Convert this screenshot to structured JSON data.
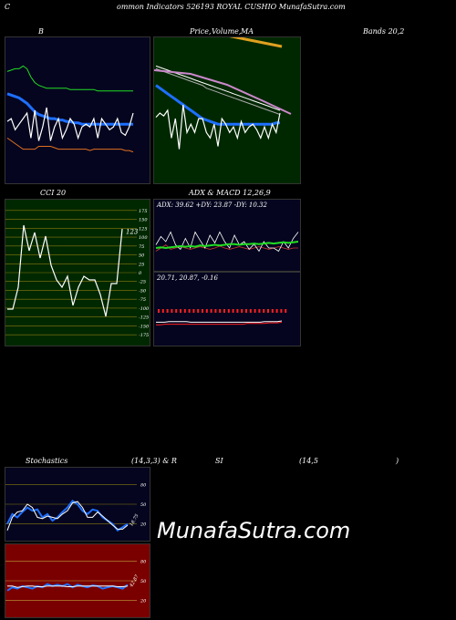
{
  "header": {
    "prefix": "C",
    "text": "ommon  Indicators 526193 ROYAL  CUSHIO MunafaSutra.com"
  },
  "labels": {
    "bollinger_b": "B",
    "price_label": "Price,",
    "volume_label": "Volume,",
    "ma_label": "MA",
    "bands_label": "Bands 20,2",
    "cci_label": "CCI 20",
    "adx_macd_label": "ADX  & MACD 12,26,9",
    "stochastics_label": "Stochastics",
    "stoch_params": "(14,3,3) & R",
    "rsi_si": "SI",
    "rsi_params": "(14,5",
    "rsi_close": ")"
  },
  "colors": {
    "bg": "#000000",
    "panel_dark": "#05051f",
    "panel_green": "#002800",
    "panel_red": "#7a0000",
    "blue": "#1e6fff",
    "white": "#ffffff",
    "green": "#22dd22",
    "orange": "#e07020",
    "grid_olive": "#8a7a10",
    "red_bar": "#ff2020"
  },
  "watermark": "MunafaSutra.com",
  "chart_data": [
    {
      "id": "bollinger",
      "type": "line",
      "title": "B",
      "ylim": [
        0,
        100
      ],
      "series": [
        {
          "color": "#22dd22",
          "values": [
            78,
            79,
            80,
            80,
            82,
            80,
            74,
            70,
            68,
            67,
            66,
            66,
            66,
            66,
            66,
            66,
            65,
            65,
            65,
            65,
            65,
            65,
            65,
            64,
            64,
            64,
            64,
            64,
            64,
            64,
            64,
            64,
            64
          ]
        },
        {
          "color": "#1e6fff",
          "values": [
            62,
            61,
            60,
            59,
            57,
            55,
            52,
            49,
            47,
            46,
            45,
            44,
            44,
            43,
            43,
            42,
            42,
            41,
            41,
            40,
            40,
            40,
            40,
            40,
            40,
            40,
            40,
            40,
            40,
            40,
            40,
            40,
            40
          ]
        },
        {
          "color": "#ffffff",
          "values": [
            42,
            44,
            36,
            40,
            44,
            48,
            30,
            50,
            28,
            38,
            52,
            28,
            38,
            44,
            30,
            36,
            44,
            40,
            30,
            38,
            40,
            38,
            44,
            30,
            44,
            40,
            36,
            38,
            44,
            34,
            32,
            38,
            48
          ]
        },
        {
          "color": "#e07020",
          "values": [
            30,
            28,
            26,
            24,
            22,
            22,
            22,
            22,
            24,
            24,
            24,
            24,
            23,
            22,
            22,
            22,
            22,
            22,
            22,
            22,
            22,
            21,
            22,
            22,
            22,
            22,
            22,
            22,
            22,
            22,
            21,
            21,
            20
          ]
        }
      ]
    },
    {
      "id": "price_ma",
      "type": "line",
      "title": "Price, Volume, MA",
      "ylim": [
        0,
        100
      ],
      "series": [
        {
          "color": "#ffffff",
          "values": [
            82,
            81,
            80,
            79,
            78,
            77,
            76,
            75,
            74,
            73,
            72,
            71,
            70,
            69,
            68,
            67,
            66,
            65,
            64,
            63,
            62,
            61,
            60,
            59,
            58,
            57,
            56,
            55,
            54,
            53,
            52,
            51,
            50
          ]
        },
        {
          "color": "#aaaaaa",
          "values": [
            80,
            79,
            78,
            77,
            76,
            75,
            74,
            73,
            72,
            71,
            70,
            69,
            68,
            66,
            65,
            64,
            63,
            62,
            61,
            60,
            59,
            58,
            57,
            56,
            55,
            54,
            53,
            52,
            51,
            50,
            49,
            48,
            47
          ]
        },
        {
          "color": "#1e6fff",
          "values": [
            68,
            66,
            64,
            62,
            60,
            58,
            56,
            54,
            52,
            50,
            48,
            46,
            44,
            43,
            42,
            41,
            40,
            40,
            40,
            40,
            40,
            40,
            40,
            40,
            40,
            40,
            40,
            40,
            40,
            40,
            40,
            41,
            41
          ]
        },
        {
          "color": "#ffffff",
          "values": [
            45,
            48,
            46,
            50,
            30,
            44,
            22,
            54,
            34,
            40,
            34,
            44,
            44,
            34,
            30,
            40,
            24,
            44,
            40,
            34,
            38,
            30,
            42,
            34,
            38,
            40,
            36,
            30,
            38,
            30,
            40,
            34,
            48
          ]
        }
      ]
    },
    {
      "id": "cci",
      "type": "line",
      "title": "CCI 20",
      "yticks": [
        175,
        150,
        125,
        100,
        75,
        50,
        25,
        0,
        -25,
        -50,
        -75,
        -100,
        -125,
        -150,
        -175
      ],
      "ylim": [
        -190,
        190
      ],
      "last_value_label": "123",
      "values": [
        -100,
        -100,
        -40,
        130,
        60,
        110,
        40,
        100,
        20,
        -20,
        -40,
        -10,
        -90,
        -40,
        -10,
        -20,
        -20,
        -60,
        -120,
        -30,
        -30,
        120
      ]
    },
    {
      "id": "adx",
      "type": "line",
      "title": "ADX: 39.62  +DY: 23.87 -DY: 10.32",
      "ylim": [
        0,
        100
      ],
      "series": [
        {
          "color": "#22dd22",
          "values": [
            30,
            31,
            30,
            31,
            32,
            33,
            32,
            33,
            32,
            34,
            33,
            34,
            35,
            34,
            35,
            36,
            36,
            35,
            36,
            36,
            37,
            36,
            37,
            38,
            37,
            38,
            39,
            38,
            39,
            40
          ]
        },
        {
          "color": "#ffffff",
          "values": [
            35,
            48,
            40,
            55,
            35,
            28,
            45,
            30,
            55,
            42,
            30,
            50,
            38,
            55,
            40,
            30,
            50,
            35,
            40,
            28,
            36,
            25,
            40,
            30,
            30,
            25,
            40,
            30,
            45,
            55
          ]
        },
        {
          "color": "#cc3333",
          "values": [
            25,
            30,
            35,
            28,
            30,
            32,
            30,
            28,
            30,
            32,
            30,
            28,
            30,
            33,
            30,
            28,
            30,
            32,
            30,
            28,
            30,
            32,
            30,
            28,
            30,
            32,
            30,
            28,
            30,
            30
          ]
        }
      ]
    },
    {
      "id": "macd",
      "type": "line",
      "title": "20.71,  20.87,  -0.16",
      "ylim": [
        0,
        100
      ],
      "series": [
        {
          "color": "#ffffff",
          "values": [
            30,
            30,
            30,
            31,
            31,
            31,
            31,
            31,
            30,
            30,
            30,
            30,
            30,
            30,
            30,
            30,
            30,
            30,
            30,
            30,
            30,
            30,
            30,
            30,
            30,
            31,
            31,
            31,
            31,
            32
          ]
        },
        {
          "color": "#ff2020",
          "values": [
            26,
            26,
            27,
            27,
            27,
            27,
            27,
            27,
            27,
            27,
            27,
            27,
            27,
            27,
            27,
            27,
            27,
            27,
            27,
            27,
            27,
            28,
            28,
            28,
            28,
            28,
            29,
            29,
            29,
            30
          ]
        }
      ]
    },
    {
      "id": "stochastics",
      "type": "line",
      "title": "Stochastics (14,3,3)",
      "yticks": [
        80,
        50,
        20
      ],
      "ylim": [
        0,
        100
      ],
      "series": [
        {
          "color": "#1e6fff",
          "values": [
            20,
            35,
            30,
            38,
            45,
            40,
            42,
            30,
            35,
            25,
            30,
            38,
            45,
            55,
            50,
            40,
            35,
            42,
            40,
            30,
            25,
            20,
            10,
            15,
            20
          ]
        },
        {
          "color": "#ffffff",
          "values": [
            10,
            30,
            38,
            40,
            50,
            45,
            30,
            28,
            32,
            30,
            28,
            35,
            40,
            52,
            54,
            45,
            30,
            30,
            38,
            32,
            25,
            18,
            12,
            12,
            18
          ]
        }
      ],
      "last_value_label": "18.75"
    },
    {
      "id": "rsi",
      "type": "line",
      "title": "RSI (14,5)",
      "yticks": [
        80,
        50,
        20
      ],
      "ylim": [
        0,
        100
      ],
      "series": [
        {
          "color": "#1e6fff",
          "values": [
            35,
            40,
            38,
            42,
            40,
            38,
            42,
            40,
            45,
            42,
            44,
            42,
            45,
            40,
            44,
            42,
            40,
            43,
            42,
            38,
            40,
            42,
            40,
            38,
            44
          ]
        },
        {
          "color": "#ffffff",
          "values": [
            42,
            42,
            40,
            41,
            42,
            42,
            41,
            41,
            42,
            42,
            42,
            42,
            41,
            41,
            42,
            42,
            42,
            42,
            42,
            42,
            42,
            42,
            41,
            41,
            42
          ]
        }
      ],
      "last_value_label": "42.87"
    }
  ]
}
